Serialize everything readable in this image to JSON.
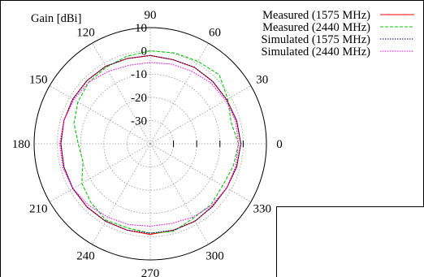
{
  "chart_data": {
    "type": "polar-line",
    "title": "",
    "radial_label": "Gain [dBi]",
    "r_range": [
      -40,
      10
    ],
    "r_ticks": [
      10,
      0,
      -10,
      -20,
      -30
    ],
    "r_tick_labels": [
      "10",
      "0",
      "-10",
      "-20",
      "-30"
    ],
    "angle_ticks": [
      0,
      30,
      60,
      90,
      120,
      150,
      180,
      210,
      240,
      270,
      300,
      330
    ],
    "angle_tick_labels": [
      "0",
      "30",
      "60",
      "90",
      "120",
      "150",
      "180",
      "210",
      "240",
      "270",
      "300",
      "330"
    ],
    "grid": true,
    "legend_position": "top-right",
    "angles_deg": [
      0,
      15,
      30,
      45,
      60,
      75,
      90,
      105,
      120,
      135,
      150,
      165,
      180,
      195,
      210,
      225,
      240,
      255,
      270,
      285,
      300,
      315,
      330,
      345
    ],
    "series": [
      {
        "name": "Measured (1575 MHz)",
        "color": "#ff0000",
        "dash": "solid",
        "values": [
          -1.0,
          -1.5,
          -2.0,
          -2.0,
          -2.0,
          -2.5,
          -2.0,
          -2.0,
          -1.5,
          -1.5,
          -1.5,
          -1.5,
          -1.5,
          -1.5,
          -1.5,
          -1.5,
          -1.5,
          -1.5,
          -1.0,
          -1.5,
          -1.5,
          -2.0,
          -2.0,
          -1.5
        ]
      },
      {
        "name": "Measured (2440 MHz)",
        "color": "#00cc00",
        "dash": "dashed",
        "values": [
          -2.0,
          -4.0,
          -1.5,
          2.0,
          1.0,
          0.5,
          0.0,
          -1.0,
          -2.0,
          -2.5,
          -4.0,
          -6.0,
          -9.0,
          -10.0,
          -6.0,
          -4.0,
          -2.0,
          -2.5,
          -1.5,
          -1.0,
          -3.0,
          -3.0,
          -4.0,
          -3.0
        ]
      },
      {
        "name": "Simulated (1575 MHz)",
        "color": "#000080",
        "dash": "dotted",
        "values": [
          -1.0,
          -1.5,
          -2.0,
          -2.0,
          -2.0,
          -2.5,
          -2.0,
          -2.0,
          -1.5,
          -1.5,
          -1.5,
          -1.5,
          -1.5,
          -1.5,
          -1.5,
          -1.5,
          -1.5,
          -1.5,
          -1.5,
          -1.5,
          -1.5,
          -2.0,
          -2.0,
          -1.5
        ]
      },
      {
        "name": "Simulated (2440 MHz)",
        "color": "#ff00ff",
        "dash": "dotted",
        "values": [
          -2.0,
          -2.0,
          -2.5,
          -3.0,
          -4.0,
          -4.5,
          -5.0,
          -5.0,
          -4.0,
          -2.5,
          -2.0,
          -1.5,
          -1.0,
          -1.0,
          -1.5,
          -2.5,
          -3.5,
          -4.0,
          -4.5,
          -4.5,
          -3.5,
          -2.5,
          -2.0,
          -2.0
        ]
      }
    ]
  }
}
